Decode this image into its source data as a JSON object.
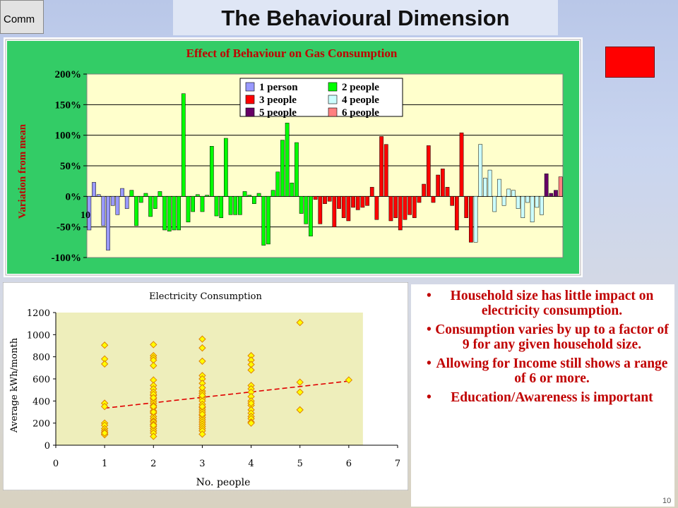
{
  "page": {
    "title": "The Behavioural Dimension",
    "overlay_button": "Comm",
    "accent_color": "#ff0000",
    "slide_number": "10"
  },
  "bullets": [
    "Household size has little impact on electricity consumption.",
    "Consumption varies by up to a factor of 9 for any given household size.",
    "Allowing for Income still shows a range of 6 or more.",
    "Education/Awareness is important"
  ],
  "chart_data": [
    {
      "type": "bar",
      "title": "Effect of Behaviour on Gas Consumption",
      "ylabel": "Variation from mean",
      "xlabel": "",
      "ylim": [
        -100,
        200
      ],
      "y_ticks": [
        "-100%",
        "-50%",
        "0%",
        "50%",
        "100%",
        "150%",
        "200%"
      ],
      "y_tick_values": [
        -100,
        -50,
        0,
        50,
        100,
        150,
        200
      ],
      "annotation": "10",
      "legend": {
        "placement": "top-center",
        "entries": [
          {
            "name": "1 person",
            "color": "#9999ff"
          },
          {
            "name": "2 people",
            "color": "#00ff00"
          },
          {
            "name": "3 people",
            "color": "#ff0000"
          },
          {
            "name": "4 people",
            "color": "#ccffff"
          },
          {
            "name": "5 people",
            "color": "#660066"
          },
          {
            "name": "6 people",
            "color": "#ff8080"
          }
        ]
      },
      "groups": [
        {
          "series": "1 person",
          "color": "#9999ff",
          "values": [
            -55,
            23,
            3,
            -48,
            -88,
            -15,
            -30,
            13,
            -20
          ]
        },
        {
          "series": "2 people",
          "color": "#00ff00",
          "values": [
            10,
            -48,
            -10,
            5,
            -33,
            -20,
            8,
            -55,
            -57,
            -55,
            -55,
            168,
            -42,
            -25,
            3,
            -25,
            2,
            82,
            -32,
            -35,
            95,
            -30,
            -30,
            -30,
            8,
            2,
            -12,
            5,
            -80,
            -78,
            10,
            40,
            92,
            120,
            22,
            88,
            -28,
            -45,
            -65
          ]
        },
        {
          "series": "3 people",
          "color": "#ff0000",
          "values": [
            -5,
            -45,
            -12,
            -8,
            -50,
            -20,
            -35,
            -40,
            -18,
            -22,
            -18,
            -15,
            15,
            -38,
            98,
            85,
            -40,
            -35,
            -55,
            -38,
            -30,
            -35,
            -10,
            20,
            83,
            -10,
            35,
            45,
            15,
            -15,
            -55,
            104,
            -35,
            -75
          ]
        },
        {
          "series": "4 people",
          "color": "#ccffff",
          "values": [
            -75,
            85,
            30,
            43,
            -25,
            28,
            -15,
            12,
            10,
            -20,
            -35,
            -10,
            -42,
            -18,
            -30
          ]
        },
        {
          "series": "5 people",
          "color": "#660066",
          "values": [
            37,
            5,
            10
          ]
        },
        {
          "series": "6 people",
          "color": "#ff8080",
          "values": [
            32
          ]
        }
      ]
    },
    {
      "type": "scatter",
      "title": "Electricity Consumption",
      "xlabel": "No. people",
      "ylabel": "Average kWh/month",
      "xlim": [
        0,
        7
      ],
      "ylim": [
        0,
        1200
      ],
      "x_ticks": [
        "0",
        "1",
        "2",
        "3",
        "4",
        "5",
        "6",
        "7"
      ],
      "y_ticks": [
        "0",
        "200",
        "400",
        "600",
        "800",
        "1000",
        "1200"
      ],
      "x": [
        1,
        1,
        1,
        1,
        1,
        1,
        1,
        1,
        1,
        1,
        1,
        1,
        1,
        2,
        2,
        2,
        2,
        2,
        2,
        2,
        2,
        2,
        2,
        2,
        2,
        2,
        2,
        2,
        2,
        2,
        2,
        2,
        2,
        2,
        2,
        2,
        2,
        2,
        2,
        2,
        2,
        2,
        2,
        2,
        2,
        3,
        3,
        3,
        3,
        3,
        3,
        3,
        3,
        3,
        3,
        3,
        3,
        3,
        3,
        3,
        3,
        3,
        3,
        3,
        3,
        3,
        3,
        3,
        3,
        3,
        3,
        3,
        3,
        4,
        4,
        4,
        4,
        4,
        4,
        4,
        4,
        4,
        4,
        4,
        4,
        4,
        4,
        4,
        4,
        4,
        5,
        5,
        5,
        5,
        6
      ],
      "y": [
        905,
        780,
        735,
        380,
        350,
        200,
        180,
        150,
        130,
        115,
        100,
        95,
        110,
        910,
        810,
        790,
        770,
        720,
        590,
        540,
        510,
        480,
        450,
        420,
        400,
        380,
        360,
        340,
        310,
        290,
        260,
        240,
        220,
        210,
        190,
        170,
        150,
        130,
        110,
        80,
        300,
        350,
        460,
        180,
        430,
        960,
        880,
        760,
        630,
        600,
        560,
        490,
        470,
        440,
        420,
        400,
        370,
        340,
        320,
        300,
        270,
        250,
        230,
        210,
        190,
        170,
        150,
        130,
        100,
        450,
        520,
        350,
        280,
        810,
        770,
        730,
        680,
        540,
        510,
        480,
        440,
        400,
        360,
        320,
        290,
        260,
        240,
        210,
        200,
        380,
        1110,
        570,
        480,
        320,
        590
      ],
      "series": [
        {
          "name": "",
          "marker_color": "#ffff00",
          "marker_edge": "#e08000"
        }
      ],
      "trendline": {
        "style": "dashed",
        "color": "#e00000",
        "x": [
          1,
          6
        ],
        "y": [
          335,
          580
        ]
      }
    }
  ]
}
